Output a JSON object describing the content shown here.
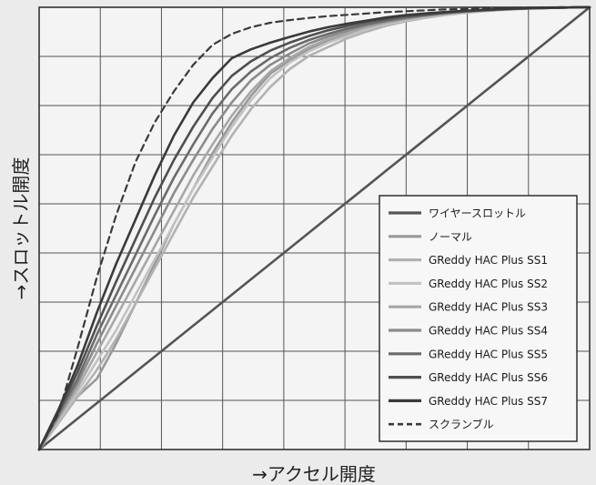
{
  "chart_data": {
    "type": "line",
    "xlabel": "→アクセル開度",
    "ylabel": "→スロットル開度",
    "xlim": [
      0,
      100
    ],
    "ylim": [
      0,
      100
    ],
    "grid": true,
    "legend_position": "bottom-right",
    "x": [
      0,
      3.5,
      7,
      10.5,
      14,
      17.5,
      21,
      24.5,
      28,
      31.5,
      35,
      38.5,
      42,
      45.5,
      49,
      52.5,
      56,
      59.5,
      63,
      66.5,
      70,
      73.5,
      77,
      80.5,
      84,
      87.5,
      91,
      94.5,
      98,
      100
    ],
    "series": [
      {
        "name": "ワイヤースロットル",
        "color": "#555555",
        "width": 2.6,
        "dash": "",
        "values": [
          0,
          3.5,
          7,
          10.5,
          14,
          17.5,
          21,
          24.5,
          28,
          31.5,
          35,
          38.5,
          42,
          45.5,
          49,
          52.5,
          56,
          59.5,
          63,
          66.5,
          70,
          73.5,
          77,
          80.5,
          84,
          87.5,
          91,
          94.5,
          98,
          100
        ]
      },
      {
        "name": "ノーマル",
        "color": "#999999",
        "width": 2.6,
        "dash": "",
        "values": [
          0,
          6,
          12,
          16,
          24,
          33,
          42,
          51,
          59,
          67,
          74,
          80,
          85,
          88,
          90.5,
          92.5,
          94,
          95.5,
          96.8,
          97.5,
          98.1,
          98.6,
          99,
          99.3,
          99.6,
          99.8,
          99.9,
          100,
          100,
          100
        ]
      },
      {
        "name": "GReddy HAC Plus SS1",
        "color": "#b2b2b2",
        "width": 2.6,
        "dash": "",
        "values": [
          0,
          6,
          12,
          18,
          25,
          33,
          41,
          49,
          57,
          64,
          71,
          77,
          82,
          86,
          89,
          91,
          93,
          94.5,
          95.8,
          96.8,
          97.6,
          98.2,
          98.7,
          99.1,
          99.4,
          99.6,
          99.8,
          99.9,
          100,
          100
        ]
      },
      {
        "name": "GReddy HAC Plus SS2",
        "color": "#c2c2c2",
        "width": 2.6,
        "dash": "",
        "values": [
          0,
          6.5,
          13,
          20,
          27,
          35,
          43,
          51,
          59,
          66,
          73,
          79,
          84,
          87.5,
          90,
          92,
          93.5,
          95,
          96.2,
          97,
          97.8,
          98.3,
          98.8,
          99.2,
          99.4,
          99.7,
          99.8,
          99.9,
          100,
          100
        ]
      },
      {
        "name": "GReddy HAC Plus SS3",
        "color": "#a7a7a7",
        "width": 2.6,
        "dash": "",
        "values": [
          0,
          7,
          14,
          22,
          30,
          38,
          46,
          54,
          62,
          69,
          75.5,
          81,
          85.5,
          88.5,
          91,
          92.8,
          94.2,
          95.5,
          96.5,
          97.3,
          98,
          98.5,
          98.9,
          99.2,
          99.5,
          99.7,
          99.8,
          99.9,
          100,
          100
        ]
      },
      {
        "name": "GReddy HAC Plus SS4",
        "color": "#8b8b8b",
        "width": 2.6,
        "dash": "",
        "values": [
          0,
          7.5,
          15,
          24,
          32.5,
          41,
          49.5,
          58,
          65.5,
          72.5,
          78.5,
          83.5,
          87,
          89.5,
          91.8,
          93.4,
          94.7,
          95.9,
          96.8,
          97.5,
          98.1,
          98.6,
          99,
          99.3,
          99.5,
          99.7,
          99.8,
          99.9,
          100,
          100
        ]
      },
      {
        "name": "GReddy HAC Plus SS5",
        "color": "#6b6b6b",
        "width": 2.6,
        "dash": "",
        "values": [
          0,
          8,
          16,
          26,
          35,
          44,
          53,
          61.5,
          69,
          76,
          81.5,
          85.5,
          88.5,
          90.8,
          92.6,
          94,
          95.2,
          96.2,
          97,
          97.7,
          98.2,
          98.7,
          99.1,
          99.3,
          99.5,
          99.7,
          99.8,
          99.9,
          100,
          100
        ]
      },
      {
        "name": "GReddy HAC Plus SS6",
        "color": "#4f4f4f",
        "width": 2.6,
        "dash": "",
        "values": [
          0,
          8.5,
          17.5,
          28,
          38,
          47.5,
          57,
          65.5,
          73,
          79.5,
          84.5,
          87.8,
          90.2,
          92,
          93.5,
          94.8,
          95.8,
          96.7,
          97.4,
          98,
          98.4,
          98.8,
          99.1,
          99.4,
          99.6,
          99.7,
          99.8,
          99.9,
          100,
          100
        ]
      },
      {
        "name": "GReddy HAC Plus SS7",
        "color": "#3a3a3a",
        "width": 2.6,
        "dash": "",
        "values": [
          0,
          9,
          19,
          31,
          42,
          52,
          62,
          71,
          78.5,
          84,
          88.5,
          90.5,
          92,
          93.3,
          94.5,
          95.5,
          96.3,
          97,
          97.7,
          98.2,
          98.6,
          98.9,
          99.2,
          99.4,
          99.6,
          99.8,
          99.9,
          99.9,
          100,
          100
        ]
      },
      {
        "name": "スクランブル",
        "color": "#3a3a3a",
        "width": 2.2,
        "dash": "7,5",
        "values": [
          0,
          8,
          23,
          39,
          53,
          65,
          74,
          81,
          87,
          91.5,
          94,
          95.5,
          96.5,
          97.1,
          97.6,
          98,
          98.3,
          98.6,
          98.9,
          99.1,
          99.3,
          99.5,
          99.6,
          99.7,
          99.8,
          99.9,
          99.9,
          100,
          100,
          100
        ]
      }
    ]
  }
}
